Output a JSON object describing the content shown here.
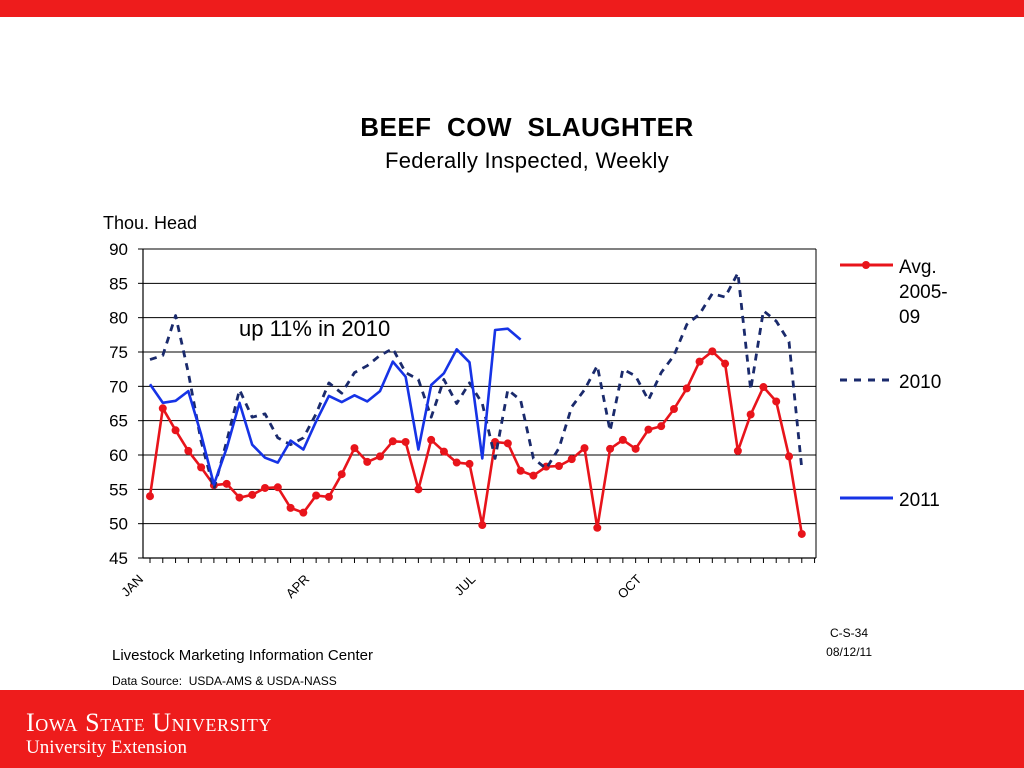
{
  "slide": {
    "footer_org": "Livestock Marketing Information Center",
    "footer_source": "Data Source:  USDA-AMS & USDA-NASS",
    "code_id": "C-S-34",
    "code_date": "08/12/11",
    "university_name": "Iowa State University",
    "university_sub": "University Extension",
    "brand_red": "#ee1c1c"
  },
  "chart_data": {
    "type": "line",
    "title": "BEEF  COW  SLAUGHTER",
    "subtitle": "Federally Inspected, Weekly",
    "ylabel": "Thou. Head",
    "ylim": [
      45,
      90
    ],
    "yticks": [
      45,
      50,
      55,
      60,
      65,
      70,
      75,
      80,
      85,
      90
    ],
    "x_tick_labels": [
      {
        "label": "JAN",
        "week": 1
      },
      {
        "label": "APR",
        "week": 14
      },
      {
        "label": "JUL",
        "week": 27
      },
      {
        "label": "OCT",
        "week": 40
      }
    ],
    "x_range_weeks": [
      1,
      53
    ],
    "grid": "horizontal",
    "legend_position": "right",
    "annotation": "up 11% in 2010",
    "series": [
      {
        "name": "Avg. 2005-09",
        "color": "#e8141b",
        "style": "solid-markers",
        "values": [
          54.0,
          66.8,
          63.6,
          60.6,
          58.2,
          55.6,
          55.8,
          53.8,
          54.2,
          55.2,
          55.3,
          52.3,
          51.6,
          54.1,
          53.9,
          57.2,
          61.0,
          59.0,
          59.8,
          62.0,
          61.9,
          55.0,
          62.2,
          60.5,
          58.9,
          58.7,
          49.8,
          61.9,
          61.7,
          57.7,
          57.0,
          58.3,
          58.4,
          59.4,
          61.0,
          49.4,
          60.9,
          62.2,
          60.9,
          63.7,
          64.2,
          66.7,
          69.7,
          73.6,
          75.1,
          73.3,
          60.6,
          65.9,
          69.9,
          67.8,
          59.8,
          48.5
        ]
      },
      {
        "name": "2010",
        "color": "#1a2a6c",
        "style": "dashed",
        "values": [
          73.9,
          74.5,
          80.3,
          72.0,
          62.0,
          55.0,
          62.0,
          69.5,
          65.5,
          66.0,
          62.5,
          61.5,
          62.5,
          66.0,
          70.5,
          69.0,
          72.0,
          73.0,
          74.5,
          75.5,
          72.0,
          71.0,
          65.5,
          71.0,
          67.5,
          70.5,
          67.5,
          59.5,
          69.5,
          68.0,
          59.5,
          58.0,
          61.0,
          67.0,
          69.5,
          73.0,
          63.5,
          72.5,
          71.5,
          68.0,
          72.0,
          74.5,
          79.0,
          80.5,
          83.5,
          83.0,
          86.5,
          69.5,
          81.0,
          79.5,
          76.5,
          58.0
        ]
      },
      {
        "name": "2011",
        "color": "#1633e6",
        "style": "solid",
        "values": [
          70.3,
          67.6,
          67.9,
          69.3,
          63.0,
          55.7,
          61.0,
          67.6,
          61.5,
          59.6,
          58.9,
          62.1,
          60.8,
          64.9,
          68.6,
          67.7,
          68.7,
          67.8,
          69.3,
          73.6,
          71.4,
          60.8,
          70.2,
          71.9,
          75.4,
          73.5,
          59.5,
          78.2,
          78.4,
          76.8
        ]
      }
    ]
  }
}
